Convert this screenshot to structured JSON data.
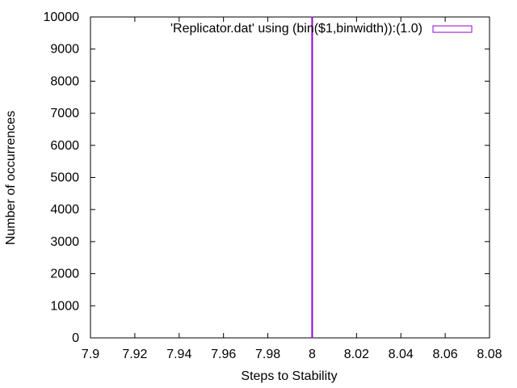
{
  "chart_data": {
    "type": "bar",
    "xlabel": "Steps to Stability",
    "ylabel": "Number of occurrences",
    "xlim": [
      7.9,
      8.08
    ],
    "ylim": [
      0,
      10000
    ],
    "x_ticks": [
      "7.9",
      "7.92",
      "7.94",
      "7.96",
      "7.98",
      "8",
      "8.02",
      "8.04",
      "8.06",
      "8.08"
    ],
    "y_ticks": [
      "0",
      "1000",
      "2000",
      "3000",
      "4000",
      "5000",
      "6000",
      "7000",
      "8000",
      "9000",
      "10000"
    ],
    "grid": false,
    "legend_position": "top-right",
    "series": [
      {
        "name": "'Replicator.dat' using (bin($1,binwidth)):(1.0)",
        "color": "#9400d3",
        "x": [
          8
        ],
        "values": [
          10000
        ]
      }
    ]
  }
}
